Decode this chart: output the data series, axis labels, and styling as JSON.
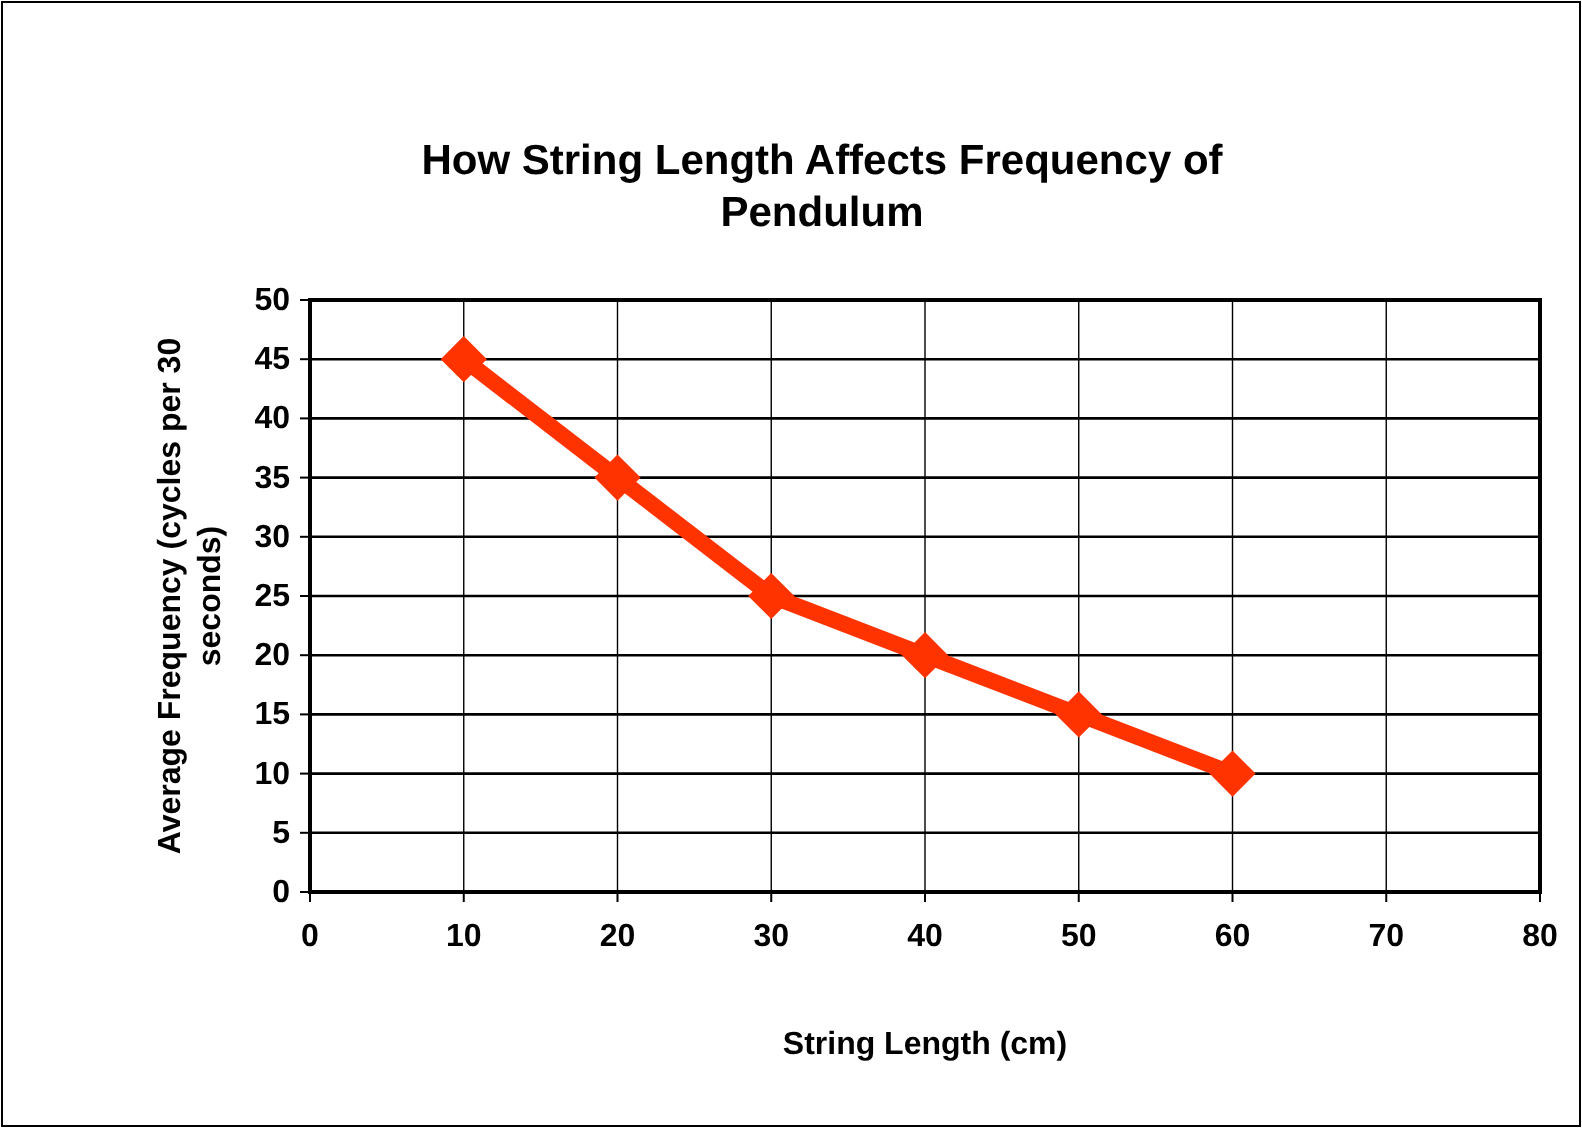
{
  "chart_data": {
    "type": "line",
    "title": "How String Length Affects Frequency of Pendulum",
    "xlabel": "String Length (cm)",
    "ylabel": "Average Frequency (cycles per 30 seconds)",
    "x": [
      10,
      20,
      30,
      40,
      50,
      60
    ],
    "series": [
      {
        "color": "#ff3300",
        "values": [
          45,
          35,
          25,
          20,
          15,
          10
        ]
      }
    ],
    "xlim": [
      0,
      80
    ],
    "xticks": [
      0,
      10,
      20,
      30,
      40,
      50,
      60,
      70,
      80
    ],
    "ylim": [
      0,
      50
    ],
    "yticks": [
      0,
      5,
      10,
      15,
      20,
      25,
      30,
      35,
      40,
      45,
      50
    ],
    "grid": true,
    "marker": "diamond",
    "line_style": "solid"
  }
}
